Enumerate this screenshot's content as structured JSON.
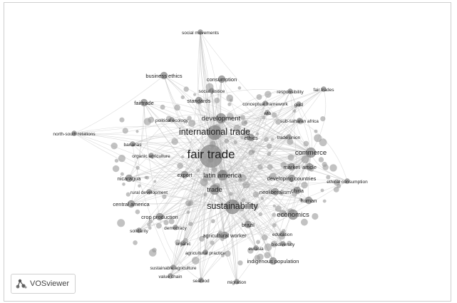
{
  "app": {
    "logo_text": "VOSviewer"
  },
  "map": {
    "terms": [
      {
        "label": "social movements",
        "weight": 1
      },
      {
        "label": "business ethics",
        "weight": 2
      },
      {
        "label": "consumption",
        "weight": 2
      },
      {
        "label": "social justice",
        "weight": 1
      },
      {
        "label": "responsibility",
        "weight": 1
      },
      {
        "label": "fair trades",
        "weight": 1
      },
      {
        "label": "fairtrade",
        "weight": 2
      },
      {
        "label": "standards",
        "weight": 2
      },
      {
        "label": "conceptual framework",
        "weight": 1
      },
      {
        "label": "gold",
        "weight": 1
      },
      {
        "label": "wto",
        "weight": 1
      },
      {
        "label": "political ecology",
        "weight": 1
      },
      {
        "label": "development",
        "weight": 3
      },
      {
        "label": "sub-saharan africa",
        "weight": 1
      },
      {
        "label": "north-south relations",
        "weight": 1
      },
      {
        "label": "international trade",
        "weight": 4
      },
      {
        "label": "ethics",
        "weight": 2
      },
      {
        "label": "trade union",
        "weight": 1
      },
      {
        "label": "bananas",
        "weight": 1
      },
      {
        "label": "organic agriculture",
        "weight": 1
      },
      {
        "label": "fair trade",
        "weight": 6
      },
      {
        "label": "commerce",
        "weight": 3
      },
      {
        "label": "market",
        "weight": 2
      },
      {
        "label": "article",
        "weight": 2
      },
      {
        "label": "export",
        "weight": 2
      },
      {
        "label": "latin america",
        "weight": 3
      },
      {
        "label": "developing countries",
        "weight": 2
      },
      {
        "label": "nicaragua",
        "weight": 2
      },
      {
        "label": "ethical consumption",
        "weight": 1
      },
      {
        "label": "rural development",
        "weight": 1
      },
      {
        "label": "trade",
        "weight": 3
      },
      {
        "label": "neoliberalism",
        "weight": 2
      },
      {
        "label": "china",
        "weight": 2
      },
      {
        "label": "central america",
        "weight": 2
      },
      {
        "label": "human",
        "weight": 2
      },
      {
        "label": "sustainability",
        "weight": 4
      },
      {
        "label": "crop production",
        "weight": 2
      },
      {
        "label": "economics",
        "weight": 3
      },
      {
        "label": "brazil",
        "weight": 2
      },
      {
        "label": "solidarity",
        "weight": 1
      },
      {
        "label": "democracy",
        "weight": 1
      },
      {
        "label": "agricultural worker",
        "weight": 2
      },
      {
        "label": "education",
        "weight": 1
      },
      {
        "label": "organic",
        "weight": 1
      },
      {
        "label": "biodiversity",
        "weight": 1
      },
      {
        "label": "eurasia",
        "weight": 1
      },
      {
        "label": "agricultural practice",
        "weight": 1
      },
      {
        "label": "indigenous population",
        "weight": 2
      },
      {
        "label": "sustainable agriculture",
        "weight": 1
      },
      {
        "label": "value chain",
        "weight": 1
      },
      {
        "label": "seafood",
        "weight": 1
      },
      {
        "label": "migration",
        "weight": 1
      }
    ]
  },
  "colors": {
    "node": "#8a8a8a",
    "edge": "#bdbdbd",
    "label": "#222222"
  }
}
